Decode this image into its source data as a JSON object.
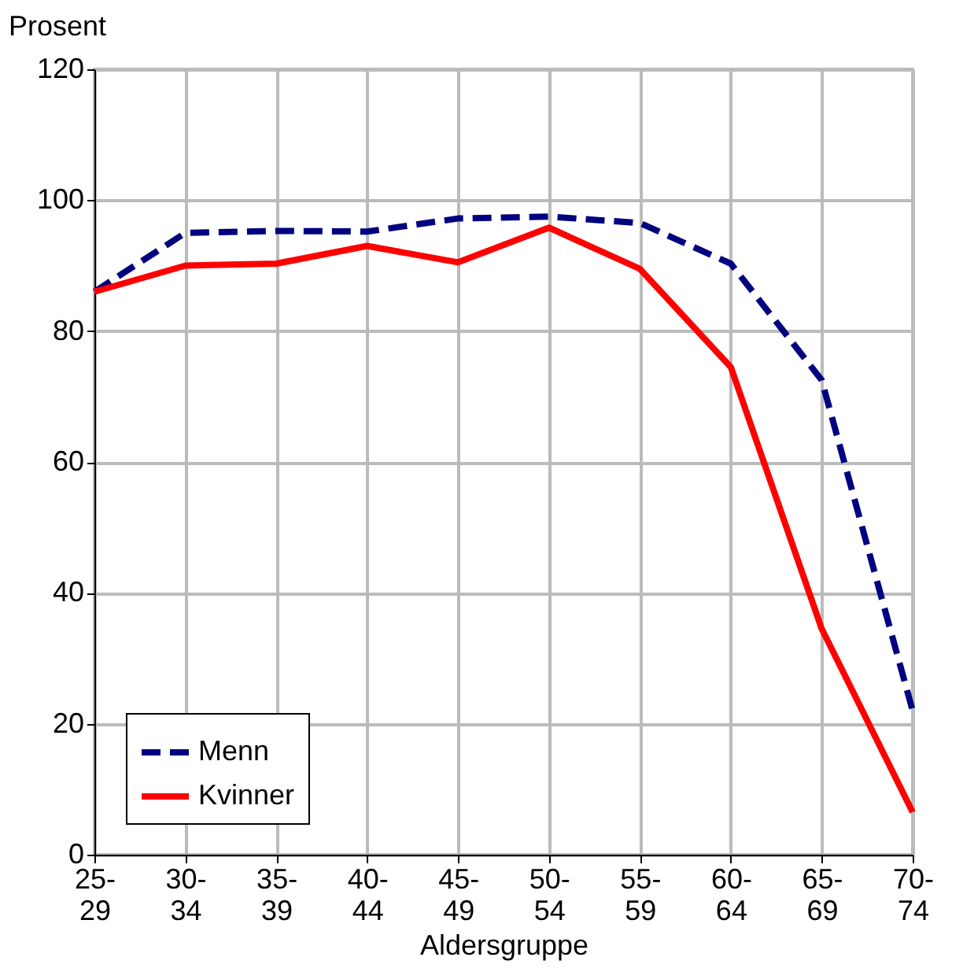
{
  "chart_data": {
    "type": "line",
    "xlabel": "Aldersgruppe",
    "ylabel": "Prosent",
    "categories": [
      "25-29",
      "30-34",
      "35-39",
      "40-44",
      "45-49",
      "50-54",
      "55-59",
      "60-64",
      "65-69",
      "70-74"
    ],
    "series": [
      {
        "name": "Menn",
        "color": "#000080",
        "line_style": "dashed",
        "values": [
          86,
          95,
          95.3,
          95.2,
          97.2,
          97.5,
          96.5,
          90.3,
          72.5,
          22
        ]
      },
      {
        "name": "Kvinner",
        "color": "#ff0000",
        "line_style": "solid",
        "values": [
          86,
          90,
          90.3,
          93,
          90.5,
          95.8,
          89.5,
          74.5,
          34.5,
          6.5
        ]
      }
    ],
    "ylim": [
      0,
      120
    ],
    "yticks": [
      0,
      20,
      40,
      60,
      80,
      100,
      120
    ],
    "grid": true,
    "legend": "bottom left",
    "marker": "none"
  }
}
